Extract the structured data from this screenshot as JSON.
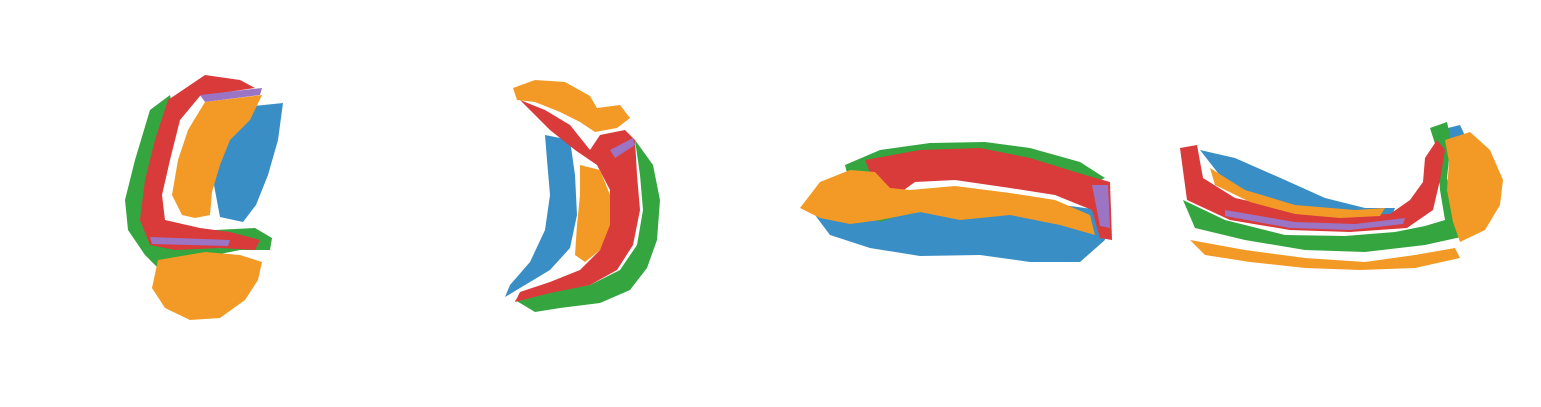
{
  "figure": {
    "views": [
      {
        "id": "view-1"
      },
      {
        "id": "view-2"
      },
      {
        "id": "view-3"
      },
      {
        "id": "view-4"
      }
    ]
  },
  "colors": {
    "blue": "#3a8ec6",
    "orange": "#f39a26",
    "red": "#d93a3a",
    "green": "#35a540",
    "purple": "#9b74c4",
    "background": "#ffffff"
  }
}
